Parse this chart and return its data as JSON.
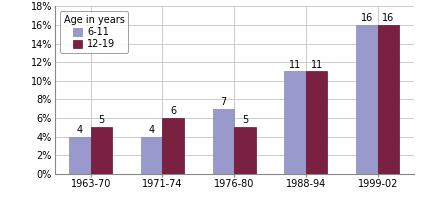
{
  "categories": [
    "1963-70",
    "1971-74",
    "1976-80",
    "1988-94",
    "1999-02"
  ],
  "series_611": [
    4,
    4,
    7,
    11,
    16
  ],
  "series_1219": [
    5,
    6,
    5,
    11,
    16
  ],
  "color_611": "#9999cc",
  "color_1219": "#7a2040",
  "legend_title": "Age in years",
  "legend_labels": [
    "6-11",
    "12-19"
  ],
  "ylim": [
    0,
    18
  ],
  "yticks": [
    0,
    2,
    4,
    6,
    8,
    10,
    12,
    14,
    16,
    18
  ],
  "ytick_labels": [
    "0%",
    "2%",
    "4%",
    "6%",
    "8%",
    "10%",
    "12%",
    "14%",
    "16%",
    "18%"
  ],
  "bar_width": 0.3,
  "background_color": "#ffffff",
  "label_fontsize": 7,
  "tick_fontsize": 7
}
